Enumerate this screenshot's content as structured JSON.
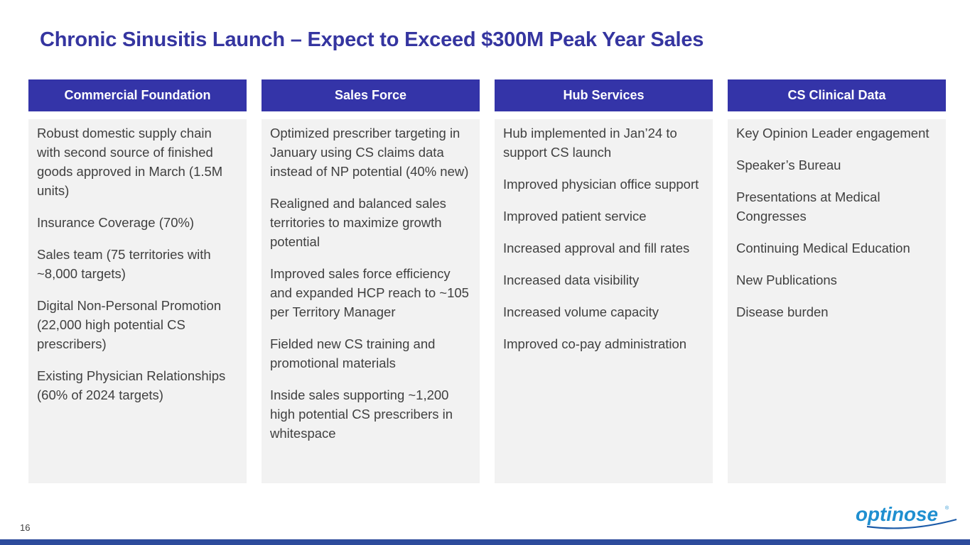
{
  "title": "Chronic Sinusitis Launch – Expect to Exceed $300M Peak Year Sales",
  "columns": [
    {
      "header": "Commercial Foundation",
      "items": [
        "Robust domestic supply chain with second source of finished goods approved in March (1.5M units)",
        "Insurance Coverage (70%)",
        "Sales team (75 territories with ~8,000 targets)",
        "Digital Non-Personal Promotion (22,000 high potential CS prescribers)",
        "Existing Physician Relationships (60% of 2024 targets)"
      ]
    },
    {
      "header": "Sales Force",
      "items": [
        "Optimized prescriber targeting in January using CS claims data instead of NP potential (40% new)",
        "Realigned and balanced sales territories to maximize growth potential",
        "Improved sales force efficiency and expanded HCP reach to ~105 per Territory Manager",
        "Fielded new CS training and promotional materials",
        "Inside sales supporting ~1,200 high potential CS prescribers in whitespace"
      ]
    },
    {
      "header": "Hub Services",
      "items": [
        "Hub implemented in Jan’24 to support CS launch",
        "Improved physician office support",
        "Improved patient service",
        "Increased approval and fill rates",
        "Increased data visibility",
        "Increased volume capacity",
        "Improved co-pay administration"
      ]
    },
    {
      "header": "CS Clinical Data",
      "items": [
        "Key Opinion Leader engagement",
        "Speaker’s Bureau",
        "Presentations at Medical Congresses",
        "Continuing Medical Education",
        "New Publications",
        "Disease burden"
      ]
    }
  ],
  "page_number": "16",
  "logo": "optinose"
}
